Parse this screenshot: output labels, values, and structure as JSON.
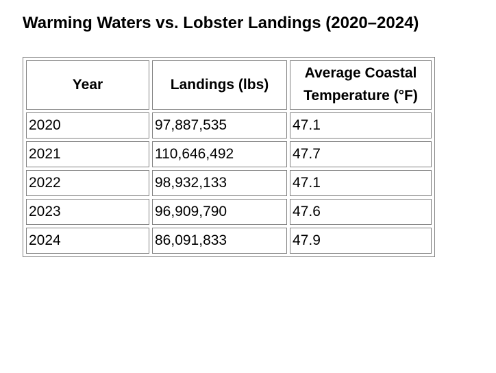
{
  "title": "Warming Waters vs. Lobster Landings (2020–2024)",
  "table": {
    "border_color": "#808080",
    "columns": [
      {
        "label": "Year"
      },
      {
        "label": "Landings (lbs)"
      },
      {
        "label": "Average Coastal Temperature (°F)"
      }
    ],
    "rows": [
      {
        "cells": [
          "2020",
          "97,887,535",
          "47.1"
        ]
      },
      {
        "cells": [
          "2021",
          "110,646,492",
          "47.7"
        ]
      },
      {
        "cells": [
          "2022",
          "98,932,133",
          "47.1"
        ]
      },
      {
        "cells": [
          "2023",
          "96,909,790",
          "47.6"
        ]
      },
      {
        "cells": [
          "2024",
          "86,091,833",
          "47.9"
        ]
      }
    ]
  },
  "chart_data": {
    "type": "table",
    "title": "Warming Waters vs. Lobster Landings (2020–2024)",
    "columns": [
      "Year",
      "Landings (lbs)",
      "Average Coastal Temperature (°F)"
    ],
    "rows": [
      [
        2020,
        97887535,
        47.1
      ],
      [
        2021,
        110646492,
        47.7
      ],
      [
        2022,
        98932133,
        47.1
      ],
      [
        2023,
        96909790,
        47.6
      ],
      [
        2024,
        86091833,
        47.9
      ]
    ]
  }
}
